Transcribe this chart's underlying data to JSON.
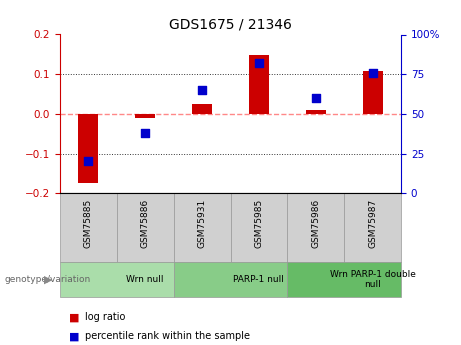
{
  "title": "GDS1675 / 21346",
  "samples": [
    "GSM75885",
    "GSM75886",
    "GSM75931",
    "GSM75985",
    "GSM75986",
    "GSM75987"
  ],
  "log_ratio": [
    -0.175,
    -0.01,
    0.025,
    0.148,
    0.01,
    0.108
  ],
  "percentile_rank": [
    20,
    38,
    65,
    82,
    60,
    76
  ],
  "groups": [
    {
      "label": "Wrn null",
      "start": 0,
      "end": 2,
      "color": "#aaddaa"
    },
    {
      "label": "PARP-1 null",
      "start": 2,
      "end": 4,
      "color": "#88cc88"
    },
    {
      "label": "Wrn PARP-1 double\nnull",
      "start": 4,
      "end": 6,
      "color": "#66bb66"
    }
  ],
  "ylim_left": [
    -0.2,
    0.2
  ],
  "ylim_right": [
    0,
    100
  ],
  "yticks_left": [
    -0.2,
    -0.1,
    0.0,
    0.1,
    0.2
  ],
  "yticks_right": [
    0,
    25,
    50,
    75,
    100
  ],
  "ytick_labels_right": [
    "0",
    "25",
    "50",
    "75",
    "100%"
  ],
  "bar_color": "#cc0000",
  "dot_color": "#0000cc",
  "zero_line_color": "#ff8888",
  "dotted_line_color": "#333333",
  "left_axis_color": "#cc0000",
  "right_axis_color": "#0000cc",
  "bar_width": 0.35,
  "dot_size": 28,
  "sample_box_color": "#d0d0d0",
  "sample_box_edge": "#999999",
  "legend_entries": [
    "log ratio",
    "percentile rank within the sample"
  ],
  "geno_label": "genotype/variation"
}
